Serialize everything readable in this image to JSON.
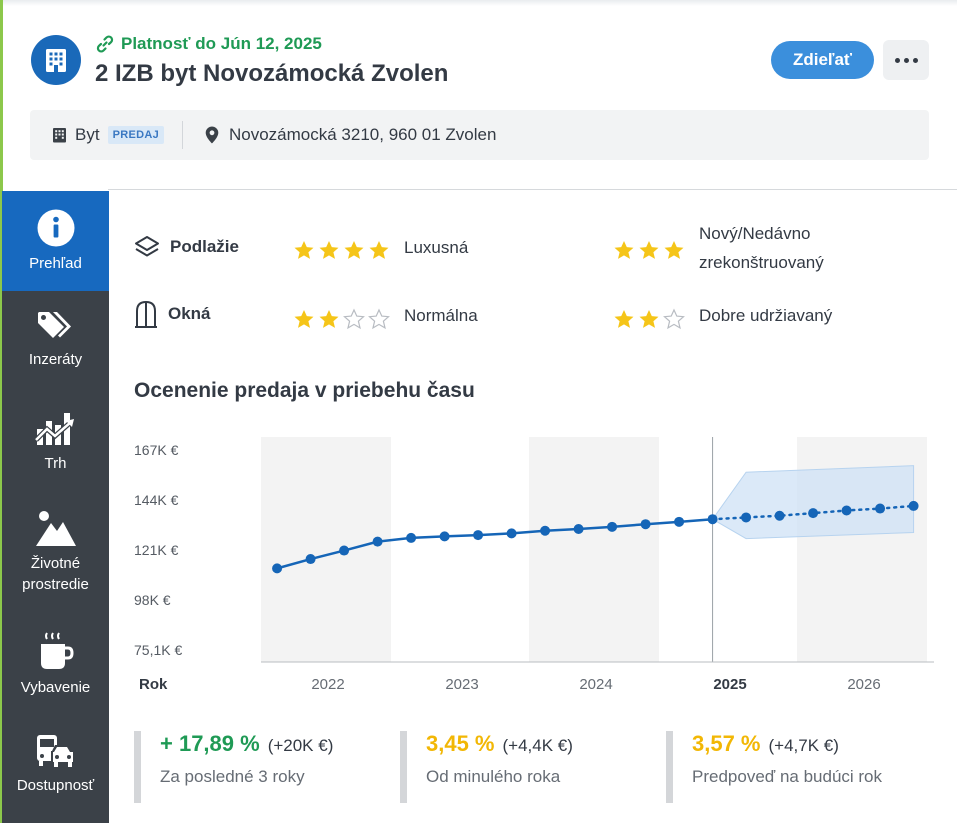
{
  "header": {
    "validity": "Platnosť do Jún 12, 2025",
    "title": "2 IZB byt Novozámocká Zvolen",
    "share_label": "Zdieľať",
    "more_label": "•••"
  },
  "info_bar": {
    "type": "Byt",
    "badge": "PREDAJ",
    "address": "Novozámocká 3210, 960 01 Zvolen"
  },
  "sidebar": {
    "items": [
      {
        "label": "Prehľad",
        "icon": "info-icon",
        "active": true
      },
      {
        "label": "Inzeráty",
        "icon": "tags-icon",
        "active": false
      },
      {
        "label": "Trh",
        "icon": "market-chart-icon",
        "active": false
      },
      {
        "label": "Životné prostredie",
        "icon": "mountain-icon",
        "active": false
      },
      {
        "label": "Vybavenie",
        "icon": "coffee-icon",
        "active": false
      },
      {
        "label": "Dostupnosť",
        "icon": "transport-icon",
        "active": false
      }
    ]
  },
  "features": [
    {
      "label": "Podlažie",
      "icon": "layers-icon",
      "rating_a": 4,
      "text_a": "Luxusná",
      "rating_b": 3,
      "text_b": "Nový/Nedávno zrekonštruovaný"
    },
    {
      "label": "Okná",
      "icon": "window-icon",
      "rating_a": 2,
      "text_a": "Normálna",
      "rating_b": 2,
      "text_b": "Dobre udržiavaný"
    }
  ],
  "chart_section_title": "Ocenenie predaja v priebehu času",
  "chart_data": {
    "type": "line",
    "title": "Ocenenie predaja v priebehu času",
    "xlabel": "Rok",
    "ylabel": "",
    "yticks": [
      "167K €",
      "144K €",
      "121K €",
      "98K €",
      "75,1K €"
    ],
    "ytick_values": [
      167,
      144,
      121,
      98,
      75.1
    ],
    "ylim": [
      75.1,
      167
    ],
    "xticks": [
      "2022",
      "2023",
      "2024",
      "2025",
      "2026"
    ],
    "xtick_values": [
      2022.0,
      2023.0,
      2024.0,
      2025.0,
      2026.0
    ],
    "current_year_label": "2025",
    "series": [
      {
        "name": "",
        "style": "solid",
        "x": [
          2021.62,
          2021.87,
          2022.12,
          2022.37,
          2022.62,
          2022.87,
          2023.12,
          2023.37,
          2023.62,
          2023.87,
          2024.12,
          2024.37,
          2024.62,
          2024.87
        ],
        "y": [
          112.6,
          116.9,
          120.8,
          124.9,
          126.6,
          127.3,
          127.9,
          128.7,
          129.9,
          130.7,
          131.7,
          132.9,
          134.0,
          135.2
        ]
      },
      {
        "name": "",
        "style": "dotted",
        "x": [
          2024.87,
          2025.12,
          2025.37,
          2025.62,
          2025.87,
          2026.12,
          2026.37
        ],
        "y": [
          135.2,
          136.0,
          136.8,
          138.0,
          139.2,
          140.1,
          141.3
        ]
      }
    ],
    "forecast_band": {
      "x": [
        2024.87,
        2025.12,
        2026.37
      ],
      "upper": [
        135.2,
        156.8,
        159.8
      ],
      "lower": [
        135.2,
        126.3,
        129.1
      ]
    },
    "shaded_years": [
      "2022",
      "2024",
      "2026"
    ],
    "grid": false,
    "line_color": "#1565b7",
    "band_color": "#cfe2f6"
  },
  "stats": [
    {
      "value": "+ 17,89 %",
      "delta": "(+20K €)",
      "desc": "Za posledné 3 roky",
      "color": "#1f9a55"
    },
    {
      "value": "3,45 %",
      "delta": "(+4,4K €)",
      "desc": "Od minulého roka",
      "color": "#f2b705"
    },
    {
      "value": "3,57 %",
      "delta": "(+4,7K €)",
      "desc": "Predpoveď na budúci rok",
      "color": "#f2b705"
    }
  ]
}
